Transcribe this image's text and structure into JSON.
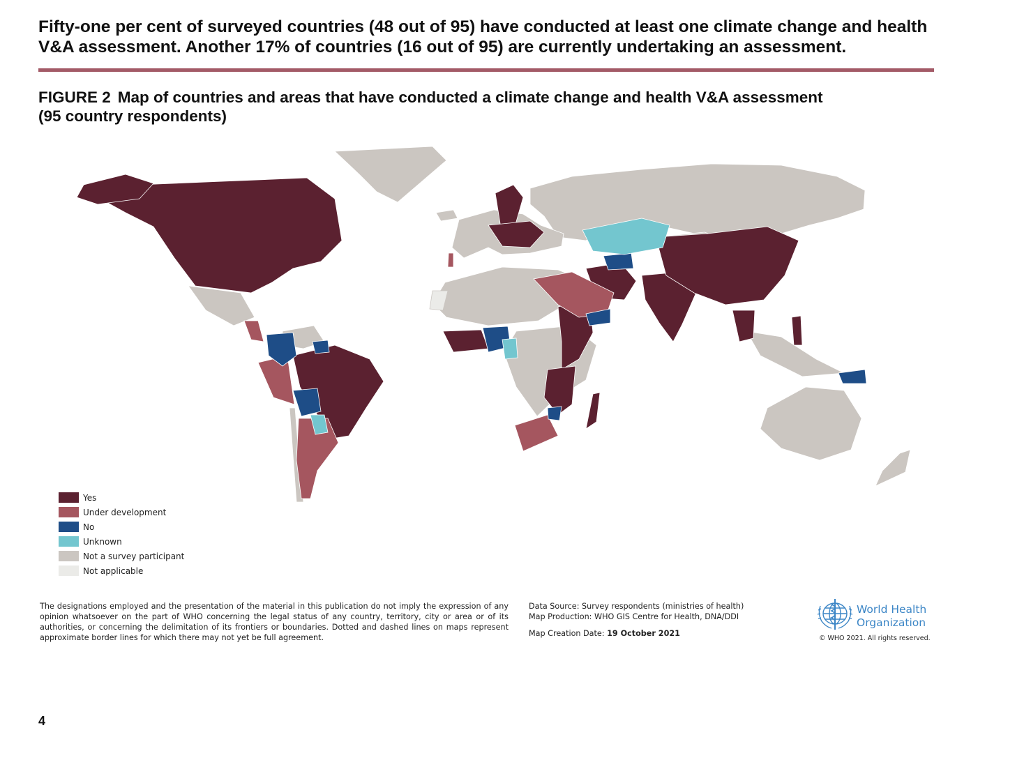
{
  "headline": "Fifty-one per cent of surveyed countries (48 out of 95) have conducted at least one climate change and health V&A assessment. Another 17% of countries (16 out of 95) are currently undertaking an assessment.",
  "figure": {
    "label": "FIGURE 2",
    "title": "Map of countries and areas that have conducted a climate change and health V&A assessment (95 country respondents)"
  },
  "colors": {
    "yes": "#5b2130",
    "under_development": "#a5565f",
    "no": "#1e4d87",
    "unknown": "#73c6cf",
    "not_participant": "#cbc6c1",
    "not_applicable": "#ebebe8",
    "rule": "#a35a67",
    "who_blue": "#3c86c6"
  },
  "legend": [
    {
      "label": "Yes",
      "color": "#5b2130"
    },
    {
      "label": "Under development",
      "color": "#a5565f"
    },
    {
      "label": "No",
      "color": "#1e4d87"
    },
    {
      "label": "Unknown",
      "color": "#73c6cf"
    },
    {
      "label": "Not a survey participant",
      "color": "#cbc6c1"
    },
    {
      "label": "Not applicable",
      "color": "#ebebe8"
    }
  ],
  "disclaimer": "The designations employed and the presentation of the material in this publication do not imply the expression of any opinion whatsoever on the part of WHO concerning the legal status of any country, territory, city or area or of its authorities, or concerning the delimitation of its frontiers or boundaries. Dotted and dashed lines on maps represent approximate border lines for which there may not yet be full agreement.",
  "source": {
    "data_source": "Data Source: Survey respondents (ministries of health)",
    "map_production": "Map Production: WHO GIS Centre for Health, DNA/DDI",
    "creation_label": "Map Creation Date:",
    "creation_date": "19 October 2021"
  },
  "who": {
    "name_line1": "World Health",
    "name_line2": "Organization",
    "copyright": "© WHO 2021. All rights reserved."
  },
  "page_number": "4"
}
